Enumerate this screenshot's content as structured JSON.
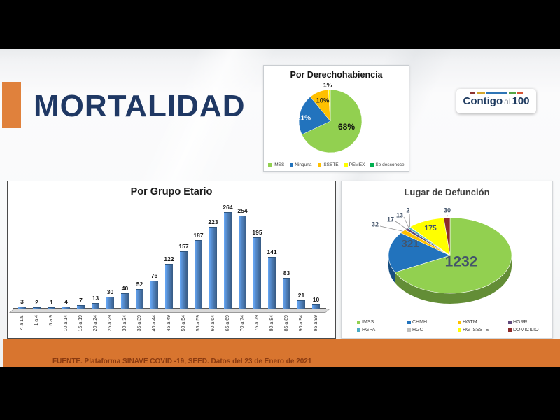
{
  "slide": {
    "title": "MORTALIDAD",
    "logo": {
      "word1": "Contigo",
      "word2": "al",
      "word3": "100"
    },
    "footer_source": "FUENTE. Plataforma SINAVE COVID -19, SEED. Datos del 23 de Enero de 2021",
    "accent_color": "#E0813C",
    "title_color": "#1F3864",
    "footer_bar_color": "#D8752F",
    "logo_dash_colors": [
      "#8c3330",
      "#d4a72c",
      "#2e75b6",
      "#56a546",
      "#d85434"
    ]
  },
  "chart_data": [
    {
      "type": "pie",
      "title": "Por Derechohabiencia",
      "labels": [
        "IMSS",
        "Ninguna",
        "ISSSTE",
        "PEMEX",
        "Se desconoce"
      ],
      "values": [
        68,
        21,
        10,
        1,
        0
      ],
      "value_suffix": "%",
      "data_labels": [
        "68%",
        "21%",
        "10%",
        "1%",
        ""
      ],
      "colors": [
        "#92D050",
        "#2273BD",
        "#FFC000",
        "#FFFF00",
        "#00B050"
      ],
      "legend_position": "bottom",
      "start_angle": "12 o'clock, clockwise"
    },
    {
      "type": "bar",
      "title": "Por Grupo Etario",
      "categories": [
        "< a 1a.",
        "1 a 4",
        "5 a 9",
        "10 a 14",
        "15 a 19",
        "20 a 24",
        "25 a 29",
        "30 a 34",
        "35 a 39",
        "40 a 44",
        "45 a 49",
        "50 a 54",
        "55 a 59",
        "60 a 64",
        "65 a 69",
        "70 a 74",
        "75 a 79",
        "80 a 84",
        "85 a 89",
        "90 a 94",
        "95 a 99"
      ],
      "values": [
        3,
        2,
        1,
        4,
        7,
        13,
        30,
        40,
        52,
        76,
        122,
        157,
        187,
        223,
        264,
        254,
        195,
        141,
        83,
        21,
        10
      ],
      "bar_color": "#4F81BD",
      "ylim": [
        0,
        280
      ],
      "xlabel": "",
      "ylabel": "",
      "grid": false,
      "data_labels_shown": true
    },
    {
      "type": "pie",
      "style": "3d",
      "title": "Lugar de Defunción",
      "labels": [
        "IMSS",
        "CHMH",
        "HGTM",
        "HGRR",
        "HGPA",
        "HGC",
        "HG ISSSTE",
        "DOMICILIO"
      ],
      "values": [
        1232,
        321,
        32,
        17,
        13,
        2,
        175,
        30
      ],
      "colors": [
        "#92D050",
        "#2273BD",
        "#FFC000",
        "#604A7B",
        "#4BACC6",
        "#BFBFBF",
        "#FFFF00",
        "#8C2A2A"
      ],
      "legend_position": "bottom",
      "start_angle": "12 o'clock, clockwise"
    }
  ]
}
